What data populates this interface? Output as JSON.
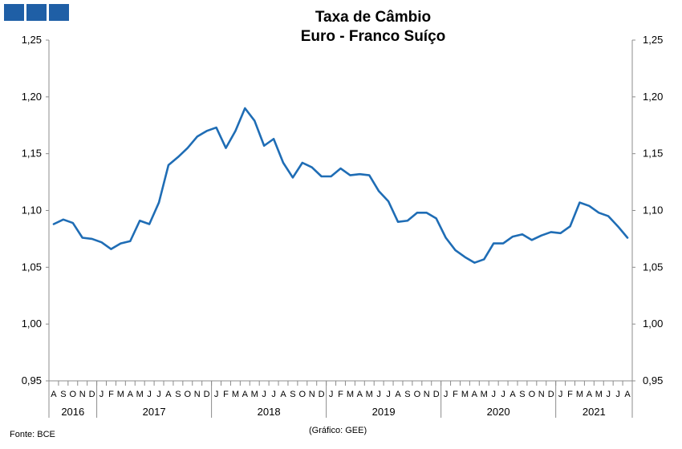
{
  "logo_color": "#1f5fa6",
  "chart_data": {
    "type": "line",
    "title": [
      "Taxa de Câmbio",
      "Euro - Franco Suíço"
    ],
    "xlabel": "",
    "ylabel": "",
    "ylim": [
      0.95,
      1.25
    ],
    "yticks": [
      "0,95",
      "1,00",
      "1,05",
      "1,10",
      "1,15",
      "1,20",
      "1,25"
    ],
    "ytick_values": [
      0.95,
      1.0,
      1.05,
      1.1,
      1.15,
      1.2,
      1.25
    ],
    "grid": false,
    "line_color": "#1f6db5",
    "months": [
      "A",
      "S",
      "O",
      "N",
      "D",
      "J",
      "F",
      "M",
      "A",
      "M",
      "J",
      "J",
      "A",
      "S",
      "O",
      "N",
      "D",
      "J",
      "F",
      "M",
      "A",
      "M",
      "J",
      "J",
      "A",
      "S",
      "O",
      "N",
      "D",
      "J",
      "F",
      "M",
      "A",
      "M",
      "J",
      "J",
      "A",
      "S",
      "O",
      "N",
      "D",
      "J",
      "F",
      "M",
      "A",
      "M",
      "J",
      "J",
      "A",
      "S",
      "O",
      "N",
      "D",
      "J",
      "F",
      "M",
      "A",
      "M",
      "J",
      "J",
      "A"
    ],
    "years": [
      {
        "label": "2016",
        "count": 5
      },
      {
        "label": "2017",
        "count": 12
      },
      {
        "label": "2018",
        "count": 12
      },
      {
        "label": "2019",
        "count": 12
      },
      {
        "label": "2020",
        "count": 12
      },
      {
        "label": "2021",
        "count": 8
      }
    ],
    "series": [
      {
        "values": [
          1.088,
          1.092,
          1.089,
          1.076,
          1.075,
          1.072,
          1.066,
          1.071,
          1.073,
          1.091,
          1.088,
          1.107,
          1.14,
          1.147,
          1.155,
          1.165,
          1.17,
          1.173,
          1.155,
          1.17,
          1.19,
          1.179,
          1.157,
          1.163,
          1.142,
          1.129,
          1.142,
          1.138,
          1.13,
          1.13,
          1.137,
          1.131,
          1.132,
          1.131,
          1.117,
          1.108,
          1.09,
          1.091,
          1.098,
          1.098,
          1.093,
          1.076,
          1.065,
          1.059,
          1.054,
          1.057,
          1.071,
          1.071,
          1.077,
          1.079,
          1.074,
          1.078,
          1.081,
          1.08,
          1.086,
          1.107,
          1.104,
          1.098,
          1.095,
          1.086,
          1.076
        ]
      }
    ]
  },
  "footer": {
    "source": "Fonte: BCE",
    "credit": "(Gráfico: GEE)"
  }
}
